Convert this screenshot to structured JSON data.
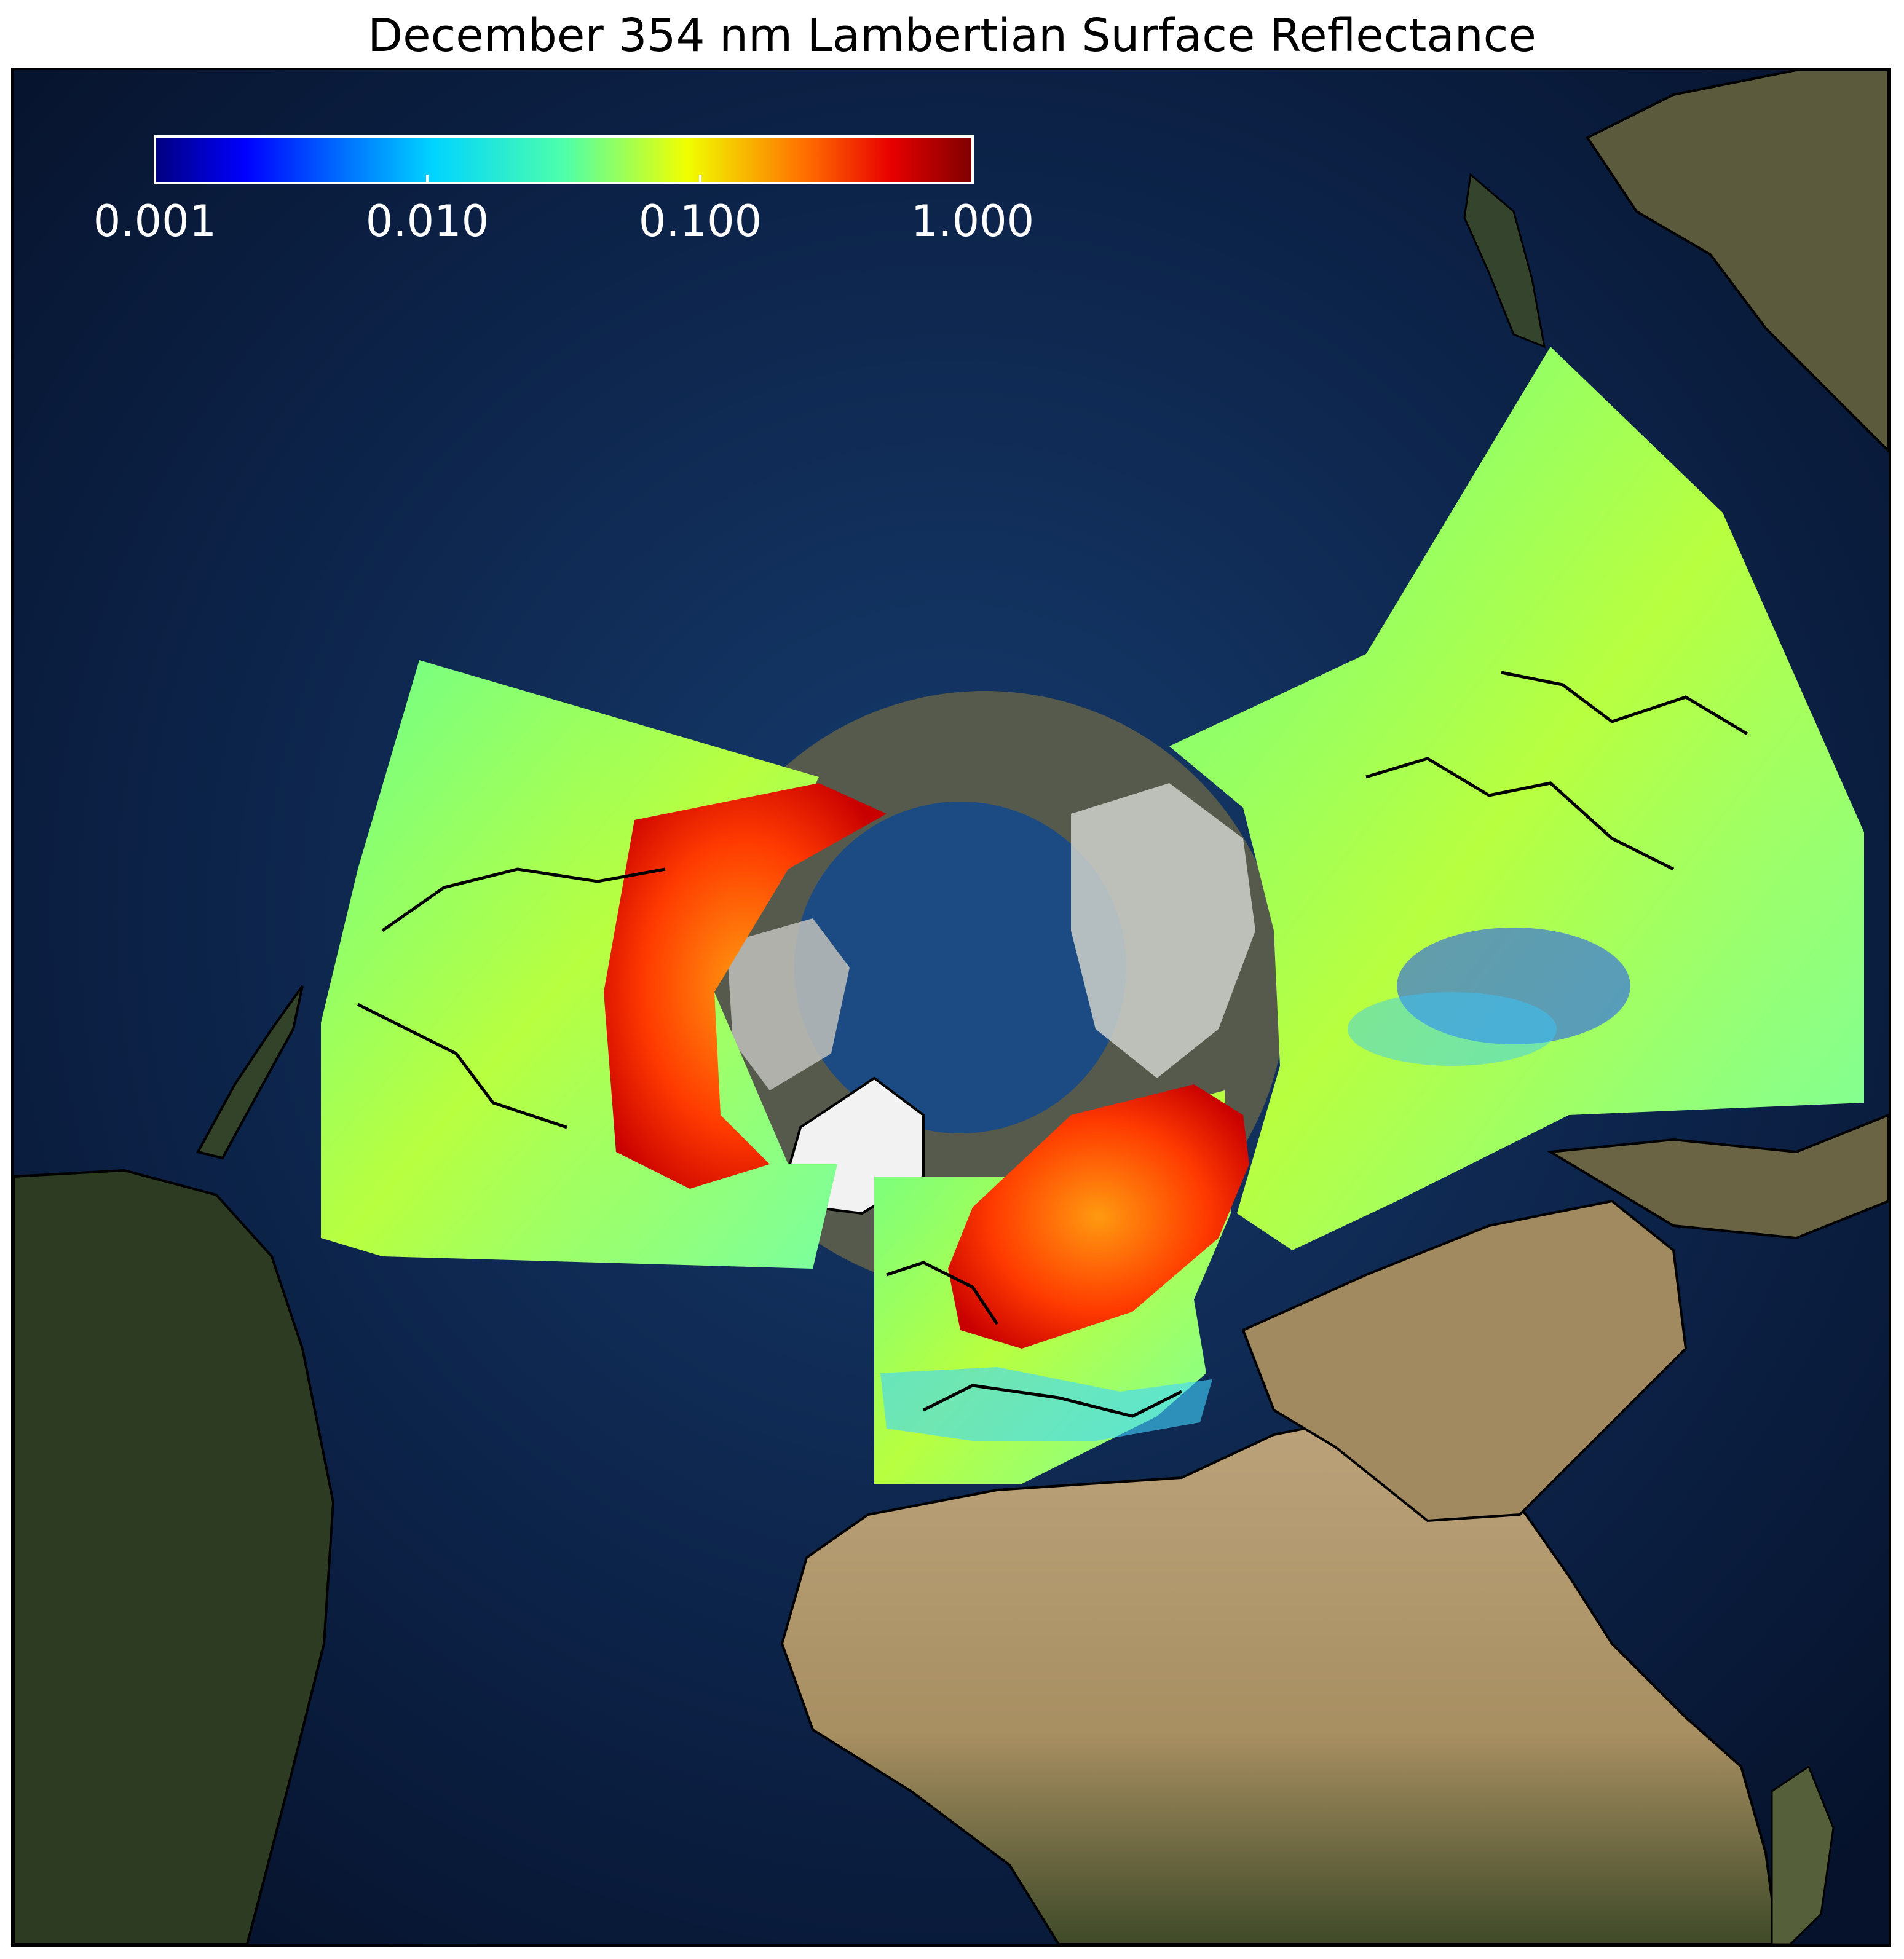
{
  "title": "December 354 nm Lambertian Surface Reflectance",
  "colorbar": {
    "scale": "log",
    "min": 0.001,
    "max": 1.0,
    "ticks": [
      "0.001",
      "0.010",
      "0.100",
      "1.000"
    ],
    "colormap": "jet",
    "text_color": "#ffffff"
  },
  "colors": {
    "ocean": "#0b1a38",
    "ocean_shelf": "#1b4f86",
    "land_vegetation": "#2c3c22",
    "land_desert": "#b0966a",
    "snow_ice": "#e8e8e8",
    "coastlines": "#000000"
  }
}
